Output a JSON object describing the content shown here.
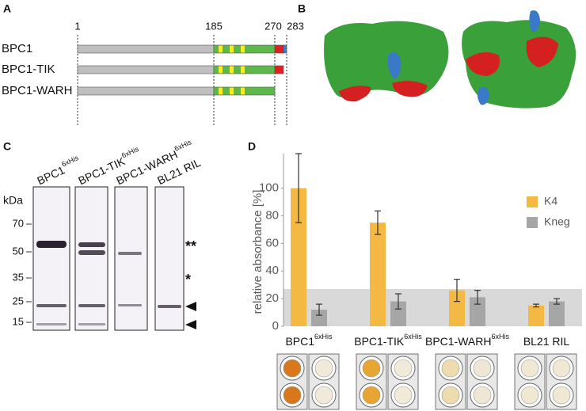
{
  "panels": [
    "A",
    "B",
    "C",
    "D"
  ],
  "panel_a": {
    "positions": [
      "1",
      "185",
      "270",
      "283"
    ],
    "constructs": [
      "BPC1",
      "BPC1-TIK",
      "BPC1-WARH"
    ]
  },
  "panel_c": {
    "lanes": [
      {
        "name": "BPC1",
        "sup": "6xHis"
      },
      {
        "name": "BPC1-TIK",
        "sup": "6xHis"
      },
      {
        "name": "BPC1-WARH",
        "sup": "6xHis"
      },
      {
        "name": "BL21 RIL",
        "sup": null
      }
    ],
    "unit": "kDa",
    "markers": [
      "70",
      "50",
      "35",
      "25",
      "15"
    ],
    "annotations": [
      "**",
      "*"
    ]
  },
  "chart_data": {
    "type": "bar",
    "y_label": "relative absorbance [%]",
    "categories": [
      "BPC1",
      "BPC1-TIK",
      "BPC1-WARH",
      "BL21 RIL"
    ],
    "category_superscripts": [
      "6xHis",
      "6xHis",
      "6xHis",
      null
    ],
    "series": [
      {
        "name": "K4",
        "color": "#f4b942",
        "values": [
          100,
          75,
          26,
          15
        ],
        "errors": [
          25,
          8.5,
          8,
          1
        ]
      },
      {
        "name": "Kneg",
        "color": "#a6a6a6",
        "values": [
          12,
          18,
          21,
          18
        ],
        "errors": [
          4,
          5.5,
          5,
          2
        ]
      }
    ],
    "ylim": [
      0,
      125
    ],
    "yticks": [
      0,
      20,
      40,
      60,
      80,
      100
    ],
    "shaded_band": [
      0,
      27
    ],
    "legend": "top-right"
  }
}
